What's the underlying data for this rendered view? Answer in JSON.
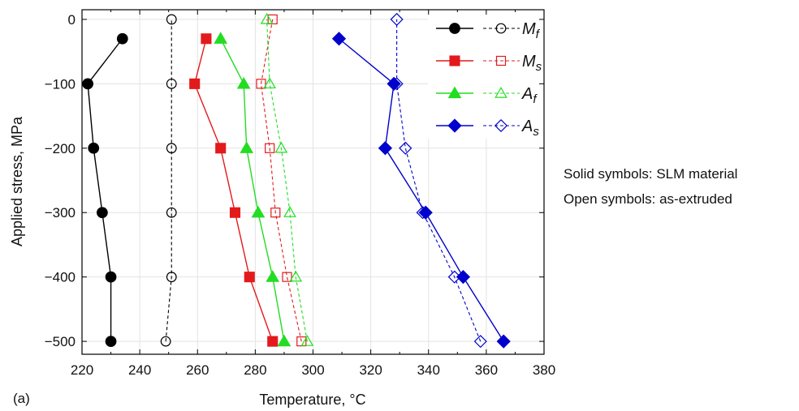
{
  "panel_label": "(a)",
  "notes": {
    "solid": "Solid symbols: SLM material",
    "open": "Open symbols: as-extruded"
  },
  "chart_data": {
    "type": "line",
    "xlabel": "Temperature, °C",
    "ylabel": "Applied stress, MPa",
    "xlim": [
      220,
      380
    ],
    "ylim": [
      -520,
      15
    ],
    "xticks": [
      220,
      240,
      260,
      280,
      300,
      320,
      340,
      360,
      380
    ],
    "yticks": [
      0,
      -100,
      -200,
      -300,
      -400,
      -500
    ],
    "grid": true,
    "legend_position": "top-right",
    "y": [
      -500,
      -400,
      -300,
      -200,
      -100,
      0
    ],
    "series": [
      {
        "key": "Mf_slm",
        "group": "M",
        "sub": "f",
        "material": "SLM",
        "marker": "circle",
        "filled": true,
        "color": "#000000",
        "x": [
          230,
          230,
          227,
          224,
          222,
          234
        ],
        "y": [
          -500,
          -400,
          -300,
          -200,
          -100,
          -30
        ]
      },
      {
        "key": "Mf_ext",
        "group": "M",
        "sub": "f",
        "material": "as-extruded",
        "marker": "circle",
        "filled": false,
        "color": "#000000",
        "x": [
          249,
          251,
          251,
          251,
          251,
          251
        ],
        "y": [
          -500,
          -400,
          -300,
          -200,
          -100,
          0
        ]
      },
      {
        "key": "Ms_slm",
        "group": "M",
        "sub": "s",
        "material": "SLM",
        "marker": "square",
        "filled": true,
        "color": "#e31a1c",
        "x": [
          286,
          278,
          273,
          268,
          259,
          263
        ],
        "y": [
          -500,
          -400,
          -300,
          -200,
          -100,
          -30
        ]
      },
      {
        "key": "Ms_ext",
        "group": "M",
        "sub": "s",
        "material": "as-extruded",
        "marker": "square",
        "filled": false,
        "color": "#e31a1c",
        "x": [
          296,
          291,
          287,
          285,
          282,
          286
        ],
        "y": [
          -500,
          -400,
          -300,
          -200,
          -100,
          0
        ]
      },
      {
        "key": "Af_slm",
        "group": "A",
        "sub": "f",
        "material": "SLM",
        "marker": "triangle",
        "filled": true,
        "color": "#22dd22",
        "x": [
          290,
          286,
          281,
          277,
          276,
          268
        ],
        "y": [
          -500,
          -400,
          -300,
          -200,
          -100,
          -30
        ]
      },
      {
        "key": "Af_ext",
        "group": "A",
        "sub": "f",
        "material": "as-extruded",
        "marker": "triangle",
        "filled": false,
        "color": "#22dd22",
        "x": [
          298,
          294,
          292,
          289,
          285,
          284
        ],
        "y": [
          -500,
          -400,
          -300,
          -200,
          -100,
          0
        ]
      },
      {
        "key": "As_slm",
        "group": "A",
        "sub": "s",
        "material": "SLM",
        "marker": "diamond",
        "filled": true,
        "color": "#0000cc",
        "x": [
          366,
          352,
          339,
          325,
          328,
          309
        ],
        "y": [
          -500,
          -400,
          -300,
          -200,
          -100,
          -30
        ]
      },
      {
        "key": "As_ext",
        "group": "A",
        "sub": "s",
        "material": "as-extruded",
        "marker": "diamond",
        "filled": false,
        "color": "#0000cc",
        "x": [
          358,
          349,
          338,
          332,
          329,
          329
        ],
        "y": [
          -500,
          -400,
          -300,
          -200,
          -100,
          0
        ]
      }
    ],
    "legend": [
      {
        "label": "M",
        "sub": "f",
        "filled_series": "Mf_slm",
        "open_series": "Mf_ext"
      },
      {
        "label": "M",
        "sub": "s",
        "filled_series": "Ms_slm",
        "open_series": "Ms_ext"
      },
      {
        "label": "A",
        "sub": "f",
        "filled_series": "Af_slm",
        "open_series": "Af_ext"
      },
      {
        "label": "A",
        "sub": "s",
        "filled_series": "As_slm",
        "open_series": "As_ext"
      }
    ]
  }
}
